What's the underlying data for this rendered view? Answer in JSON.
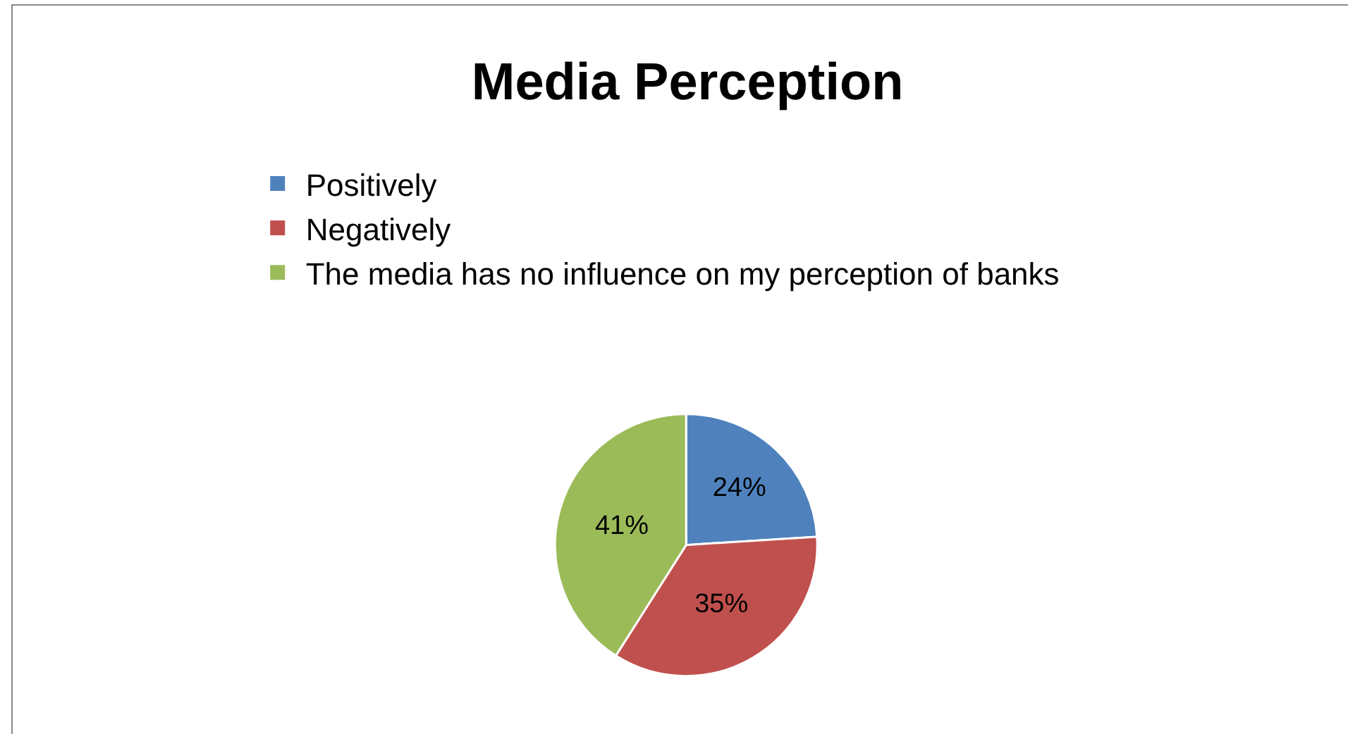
{
  "chart_data": {
    "type": "pie",
    "title": "Media Perception",
    "categories": [
      "Positively",
      "Negatively",
      "The media has no influence on my perception of banks"
    ],
    "values": [
      24,
      35,
      41
    ],
    "colors": [
      "#4f81bd",
      "#c0504d",
      "#9bbb59"
    ],
    "value_labels": [
      "24%",
      "35%",
      "41%"
    ],
    "legend": "top"
  }
}
